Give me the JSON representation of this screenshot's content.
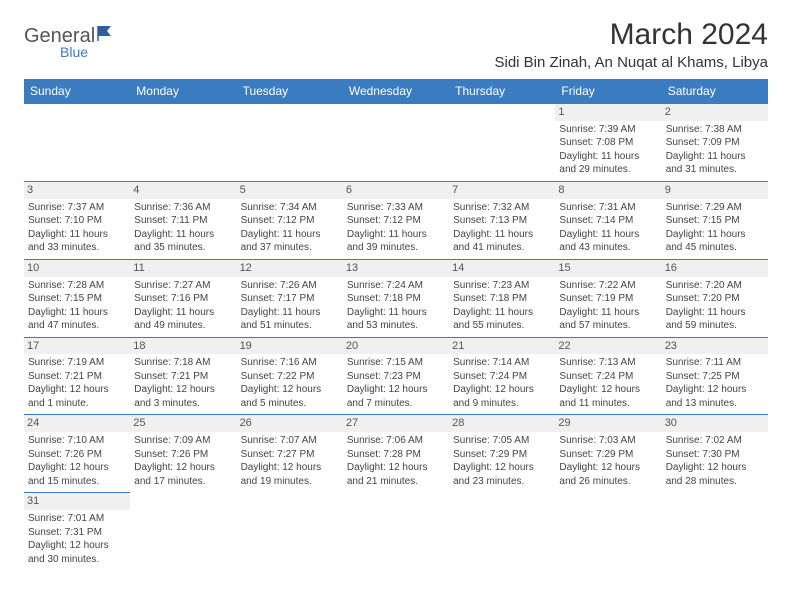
{
  "brand": {
    "main": "General",
    "sub": "Blue"
  },
  "title": "March 2024",
  "location": "Sidi Bin Zinah, An Nuqat al Khams, Libya",
  "colors": {
    "header_bg": "#3b7bbf",
    "header_fg": "#ffffff",
    "border": "#3b7bbf",
    "daynum_bg": "#f0f0f0",
    "text": "#444444"
  },
  "day_headers": [
    "Sunday",
    "Monday",
    "Tuesday",
    "Wednesday",
    "Thursday",
    "Friday",
    "Saturday"
  ],
  "weeks": [
    [
      null,
      null,
      null,
      null,
      null,
      {
        "n": "1",
        "sr": "Sunrise: 7:39 AM",
        "ss": "Sunset: 7:08 PM",
        "d1": "Daylight: 11 hours",
        "d2": "and 29 minutes."
      },
      {
        "n": "2",
        "sr": "Sunrise: 7:38 AM",
        "ss": "Sunset: 7:09 PM",
        "d1": "Daylight: 11 hours",
        "d2": "and 31 minutes."
      }
    ],
    [
      {
        "n": "3",
        "sr": "Sunrise: 7:37 AM",
        "ss": "Sunset: 7:10 PM",
        "d1": "Daylight: 11 hours",
        "d2": "and 33 minutes."
      },
      {
        "n": "4",
        "sr": "Sunrise: 7:36 AM",
        "ss": "Sunset: 7:11 PM",
        "d1": "Daylight: 11 hours",
        "d2": "and 35 minutes."
      },
      {
        "n": "5",
        "sr": "Sunrise: 7:34 AM",
        "ss": "Sunset: 7:12 PM",
        "d1": "Daylight: 11 hours",
        "d2": "and 37 minutes."
      },
      {
        "n": "6",
        "sr": "Sunrise: 7:33 AM",
        "ss": "Sunset: 7:12 PM",
        "d1": "Daylight: 11 hours",
        "d2": "and 39 minutes."
      },
      {
        "n": "7",
        "sr": "Sunrise: 7:32 AM",
        "ss": "Sunset: 7:13 PM",
        "d1": "Daylight: 11 hours",
        "d2": "and 41 minutes."
      },
      {
        "n": "8",
        "sr": "Sunrise: 7:31 AM",
        "ss": "Sunset: 7:14 PM",
        "d1": "Daylight: 11 hours",
        "d2": "and 43 minutes."
      },
      {
        "n": "9",
        "sr": "Sunrise: 7:29 AM",
        "ss": "Sunset: 7:15 PM",
        "d1": "Daylight: 11 hours",
        "d2": "and 45 minutes."
      }
    ],
    [
      {
        "n": "10",
        "sr": "Sunrise: 7:28 AM",
        "ss": "Sunset: 7:15 PM",
        "d1": "Daylight: 11 hours",
        "d2": "and 47 minutes."
      },
      {
        "n": "11",
        "sr": "Sunrise: 7:27 AM",
        "ss": "Sunset: 7:16 PM",
        "d1": "Daylight: 11 hours",
        "d2": "and 49 minutes."
      },
      {
        "n": "12",
        "sr": "Sunrise: 7:26 AM",
        "ss": "Sunset: 7:17 PM",
        "d1": "Daylight: 11 hours",
        "d2": "and 51 minutes."
      },
      {
        "n": "13",
        "sr": "Sunrise: 7:24 AM",
        "ss": "Sunset: 7:18 PM",
        "d1": "Daylight: 11 hours",
        "d2": "and 53 minutes."
      },
      {
        "n": "14",
        "sr": "Sunrise: 7:23 AM",
        "ss": "Sunset: 7:18 PM",
        "d1": "Daylight: 11 hours",
        "d2": "and 55 minutes."
      },
      {
        "n": "15",
        "sr": "Sunrise: 7:22 AM",
        "ss": "Sunset: 7:19 PM",
        "d1": "Daylight: 11 hours",
        "d2": "and 57 minutes."
      },
      {
        "n": "16",
        "sr": "Sunrise: 7:20 AM",
        "ss": "Sunset: 7:20 PM",
        "d1": "Daylight: 11 hours",
        "d2": "and 59 minutes."
      }
    ],
    [
      {
        "n": "17",
        "sr": "Sunrise: 7:19 AM",
        "ss": "Sunset: 7:21 PM",
        "d1": "Daylight: 12 hours",
        "d2": "and 1 minute."
      },
      {
        "n": "18",
        "sr": "Sunrise: 7:18 AM",
        "ss": "Sunset: 7:21 PM",
        "d1": "Daylight: 12 hours",
        "d2": "and 3 minutes."
      },
      {
        "n": "19",
        "sr": "Sunrise: 7:16 AM",
        "ss": "Sunset: 7:22 PM",
        "d1": "Daylight: 12 hours",
        "d2": "and 5 minutes."
      },
      {
        "n": "20",
        "sr": "Sunrise: 7:15 AM",
        "ss": "Sunset: 7:23 PM",
        "d1": "Daylight: 12 hours",
        "d2": "and 7 minutes."
      },
      {
        "n": "21",
        "sr": "Sunrise: 7:14 AM",
        "ss": "Sunset: 7:24 PM",
        "d1": "Daylight: 12 hours",
        "d2": "and 9 minutes."
      },
      {
        "n": "22",
        "sr": "Sunrise: 7:13 AM",
        "ss": "Sunset: 7:24 PM",
        "d1": "Daylight: 12 hours",
        "d2": "and 11 minutes."
      },
      {
        "n": "23",
        "sr": "Sunrise: 7:11 AM",
        "ss": "Sunset: 7:25 PM",
        "d1": "Daylight: 12 hours",
        "d2": "and 13 minutes."
      }
    ],
    [
      {
        "n": "24",
        "sr": "Sunrise: 7:10 AM",
        "ss": "Sunset: 7:26 PM",
        "d1": "Daylight: 12 hours",
        "d2": "and 15 minutes."
      },
      {
        "n": "25",
        "sr": "Sunrise: 7:09 AM",
        "ss": "Sunset: 7:26 PM",
        "d1": "Daylight: 12 hours",
        "d2": "and 17 minutes."
      },
      {
        "n": "26",
        "sr": "Sunrise: 7:07 AM",
        "ss": "Sunset: 7:27 PM",
        "d1": "Daylight: 12 hours",
        "d2": "and 19 minutes."
      },
      {
        "n": "27",
        "sr": "Sunrise: 7:06 AM",
        "ss": "Sunset: 7:28 PM",
        "d1": "Daylight: 12 hours",
        "d2": "and 21 minutes."
      },
      {
        "n": "28",
        "sr": "Sunrise: 7:05 AM",
        "ss": "Sunset: 7:29 PM",
        "d1": "Daylight: 12 hours",
        "d2": "and 23 minutes."
      },
      {
        "n": "29",
        "sr": "Sunrise: 7:03 AM",
        "ss": "Sunset: 7:29 PM",
        "d1": "Daylight: 12 hours",
        "d2": "and 26 minutes."
      },
      {
        "n": "30",
        "sr": "Sunrise: 7:02 AM",
        "ss": "Sunset: 7:30 PM",
        "d1": "Daylight: 12 hours",
        "d2": "and 28 minutes."
      }
    ],
    [
      {
        "n": "31",
        "sr": "Sunrise: 7:01 AM",
        "ss": "Sunset: 7:31 PM",
        "d1": "Daylight: 12 hours",
        "d2": "and 30 minutes."
      },
      null,
      null,
      null,
      null,
      null,
      null
    ]
  ]
}
